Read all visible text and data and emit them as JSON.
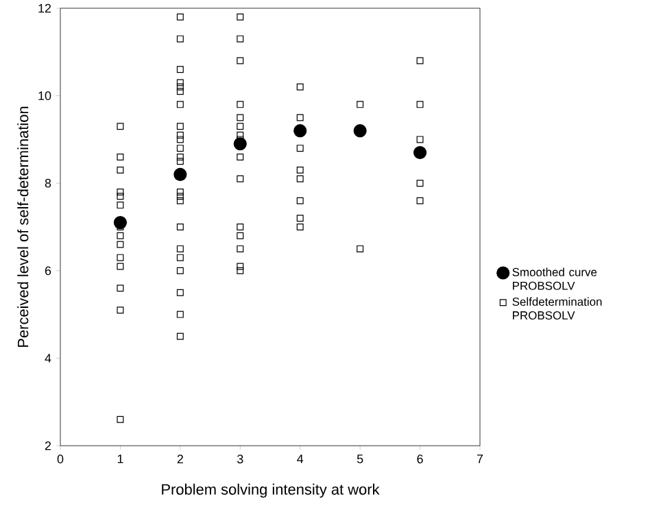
{
  "chart_data": {
    "type": "scatter",
    "xlabel": "Problem solving intensity at work",
    "ylabel": "Perceived level of self-determination",
    "xlim": [
      0,
      7
    ],
    "xticks": [
      0,
      1,
      2,
      3,
      4,
      5,
      6,
      7
    ],
    "ylim": [
      2,
      12
    ],
    "yticks": [
      2,
      4,
      6,
      8,
      10,
      12
    ],
    "legend": "right",
    "series": [
      {
        "name": "Smoothed curve PROBSOLV",
        "color": "#000000",
        "marker": "circle",
        "x": [
          1,
          2,
          3,
          4,
          5,
          6
        ],
        "values": [
          7.1,
          8.2,
          8.9,
          9.2,
          9.2,
          8.7
        ]
      },
      {
        "name": "Selfdetermination PROBSOLV",
        "color": "#000000",
        "marker": "square",
        "x": [
          1,
          1,
          1,
          1,
          1,
          1,
          1,
          1,
          1,
          1,
          1,
          1,
          1,
          1,
          2,
          2,
          2,
          2,
          2,
          2,
          2,
          2,
          2,
          2,
          2,
          2,
          2,
          2,
          2,
          2,
          2,
          2,
          2,
          2,
          2,
          2,
          2,
          3,
          3,
          3,
          3,
          3,
          3,
          3,
          3,
          3,
          3,
          3,
          3,
          3,
          3,
          3,
          4,
          4,
          4,
          4,
          4,
          4,
          4,
          4,
          5,
          5,
          6,
          6,
          6,
          6,
          6
        ],
        "values": [
          9.3,
          8.6,
          8.3,
          7.8,
          7.7,
          7.5,
          7.0,
          6.8,
          6.6,
          6.3,
          6.1,
          5.6,
          5.1,
          2.6,
          11.8,
          11.3,
          10.6,
          10.3,
          10.2,
          10.1,
          9.8,
          9.3,
          9.1,
          9.0,
          8.8,
          8.6,
          8.5,
          7.8,
          7.7,
          7.6,
          7.0,
          6.5,
          6.3,
          6.0,
          5.5,
          5.0,
          4.5,
          11.8,
          11.3,
          10.8,
          9.8,
          9.5,
          9.3,
          9.1,
          9.0,
          8.6,
          8.1,
          7.0,
          6.8,
          6.5,
          6.1,
          6.0,
          10.2,
          9.5,
          8.8,
          8.3,
          8.1,
          7.6,
          7.2,
          7.0,
          9.8,
          6.5,
          10.8,
          9.8,
          9.0,
          8.0,
          7.6
        ]
      }
    ]
  }
}
